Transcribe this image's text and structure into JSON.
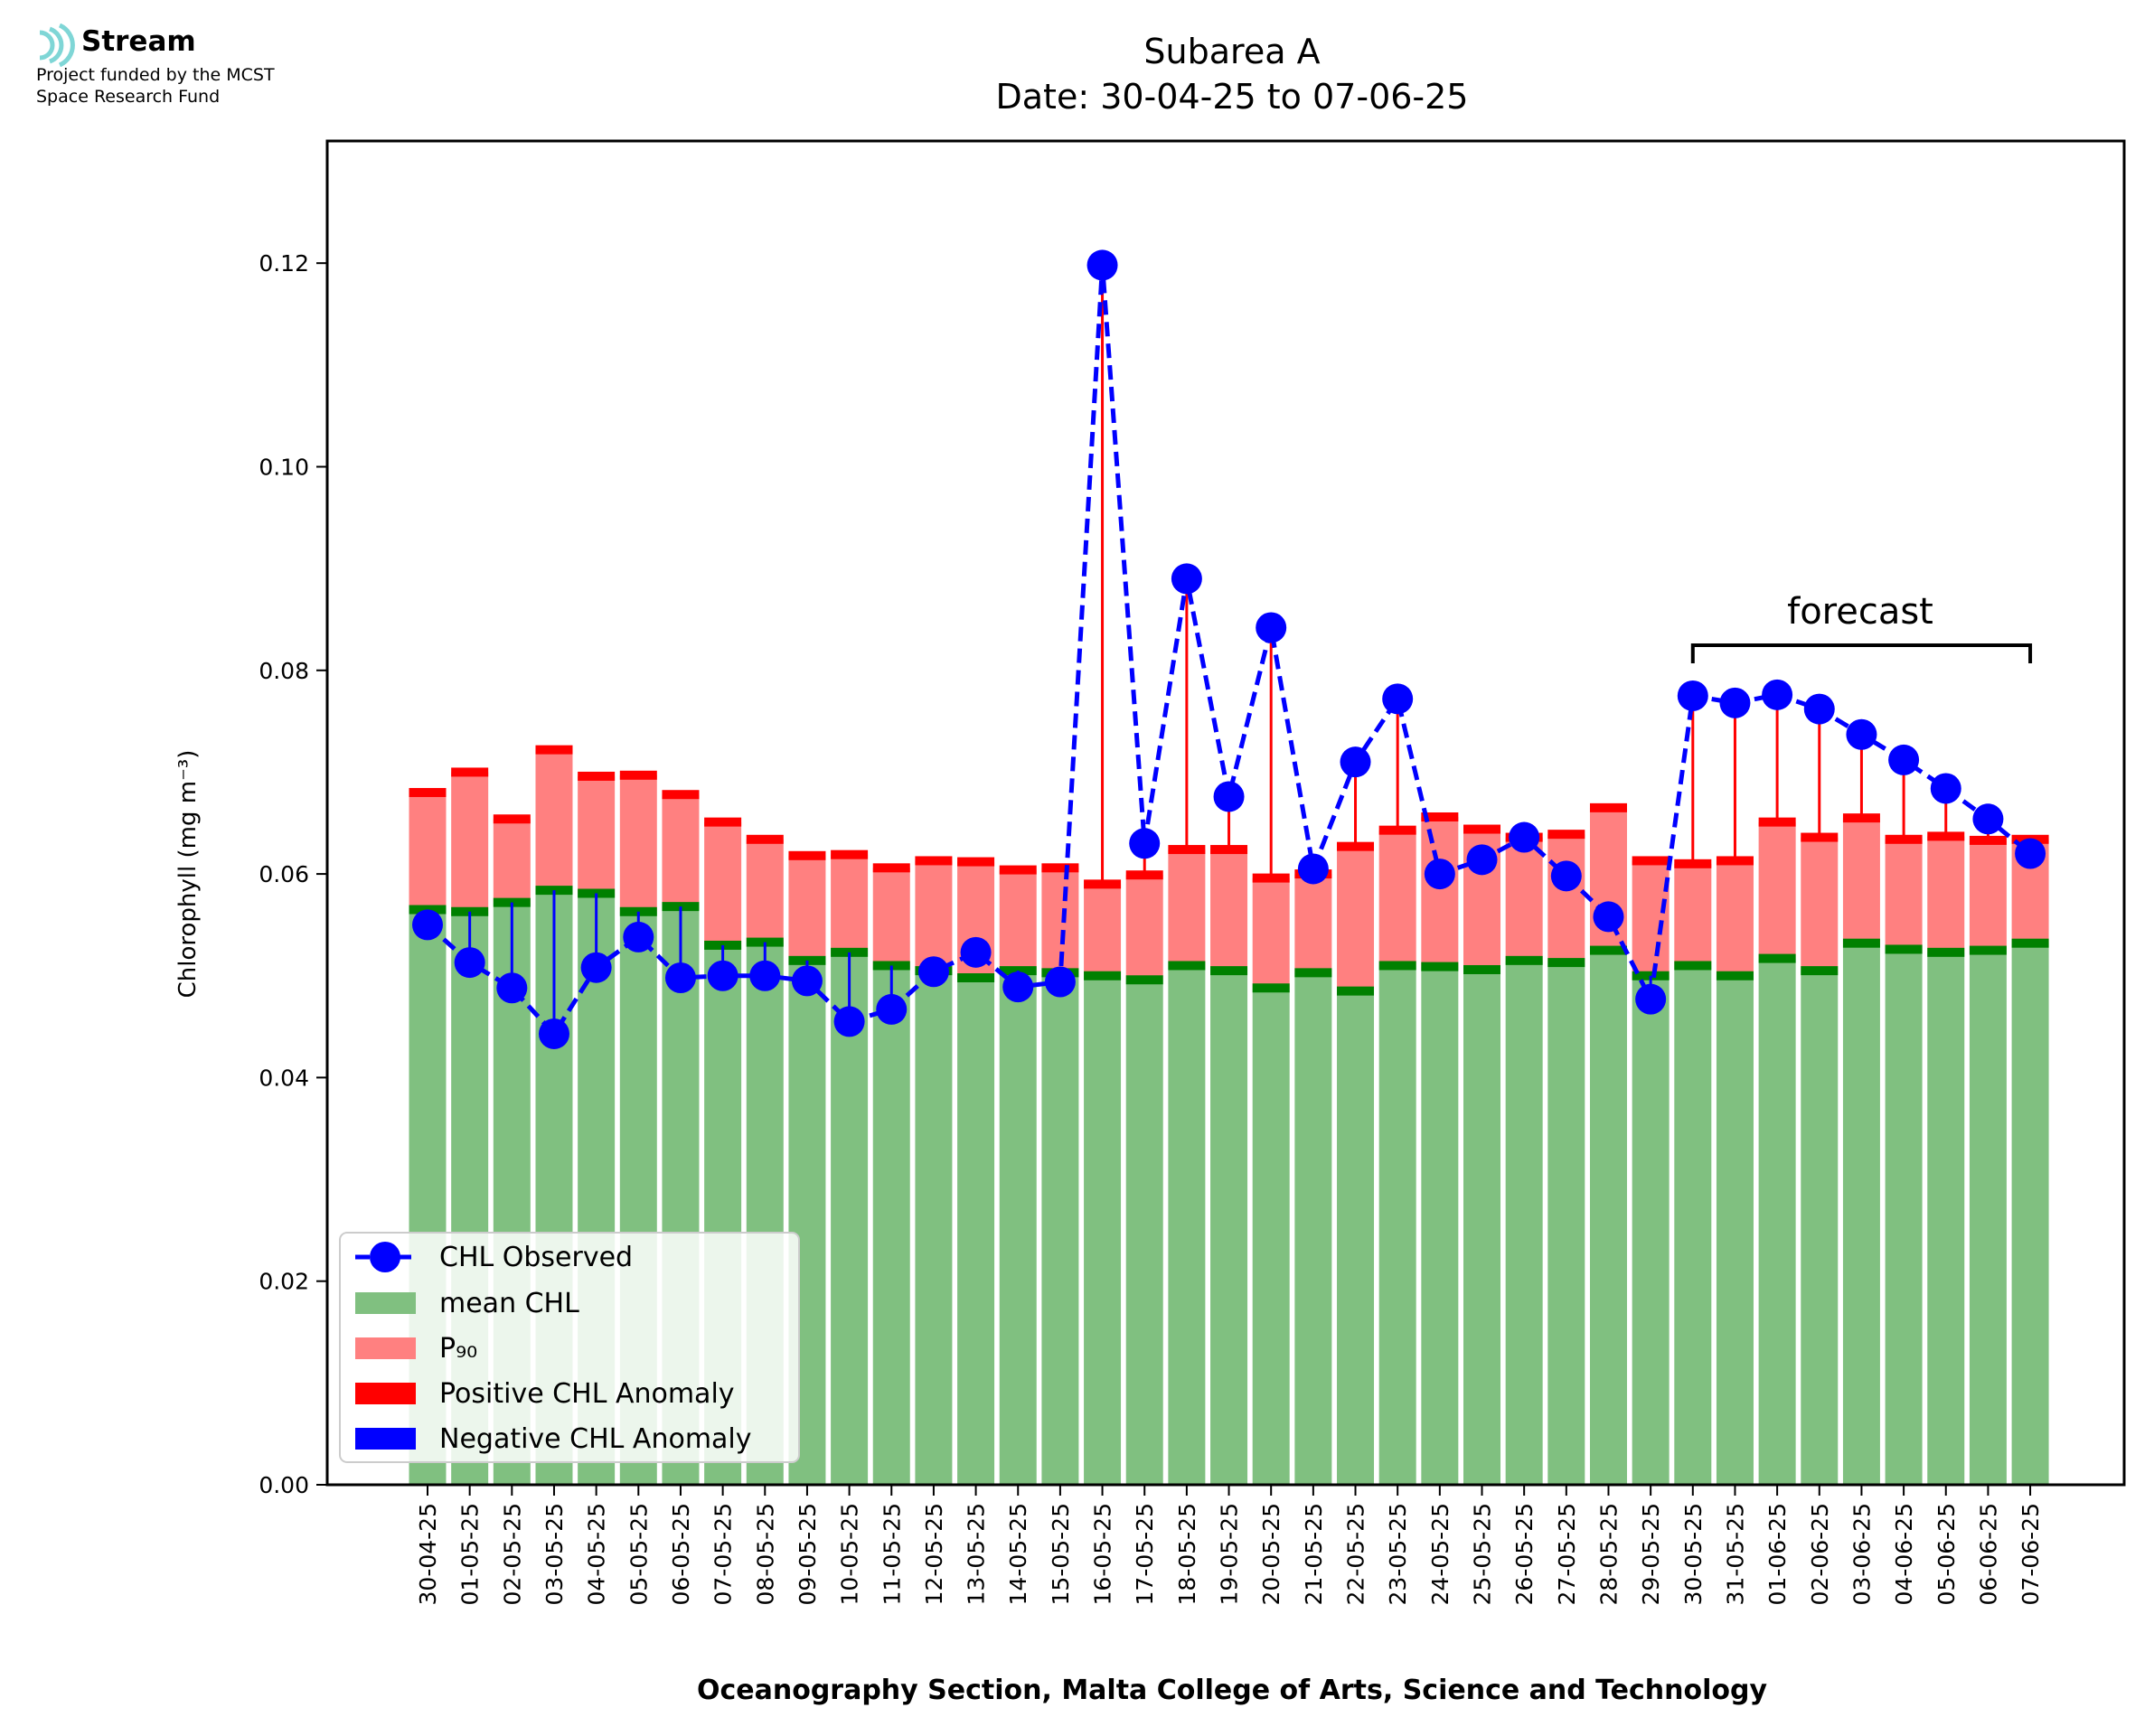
{
  "logo": {
    "name": "Stream",
    "line1": "Project funded by the MCST",
    "line2": "Space Research Fund"
  },
  "chart_data": {
    "type": "bar",
    "title": "Subarea A",
    "subtitle": "Date: 30-04-25 to 07-06-25",
    "xlabel": "Oceanography Section, Malta College of Arts, Science and Technology",
    "ylabel": "Chlorophyll (mg m⁻³)",
    "ylim": [
      0,
      0.132
    ],
    "yticks": [
      "0.00",
      "0.02",
      "0.04",
      "0.06",
      "0.08",
      "0.10",
      "0.12"
    ],
    "ytick_values": [
      0,
      0.02,
      0.04,
      0.06,
      0.08,
      0.1,
      0.12
    ],
    "grid": false,
    "legend_position": "bottom-left",
    "categories": [
      "30-04-25",
      "01-05-25",
      "02-05-25",
      "03-05-25",
      "04-05-25",
      "05-05-25",
      "06-05-25",
      "07-05-25",
      "08-05-25",
      "09-05-25",
      "10-05-25",
      "11-05-25",
      "12-05-25",
      "13-05-25",
      "14-05-25",
      "15-05-25",
      "16-05-25",
      "17-05-25",
      "18-05-25",
      "19-05-25",
      "20-05-25",
      "21-05-25",
      "22-05-25",
      "23-05-25",
      "24-05-25",
      "25-05-25",
      "26-05-25",
      "27-05-25",
      "28-05-25",
      "29-05-25",
      "30-05-25",
      "31-05-25",
      "01-06-25",
      "02-06-25",
      "03-06-25",
      "04-06-25",
      "05-06-25",
      "06-06-25",
      "07-06-25"
    ],
    "series": [
      {
        "name": "CHL Observed",
        "color": "#0000ff",
        "style": "dashed-line-circle-markers",
        "values": [
          0.055,
          0.0513,
          0.0488,
          0.0443,
          0.0508,
          0.0538,
          0.0498,
          0.05,
          0.05,
          0.0495,
          0.0455,
          0.0467,
          0.0504,
          0.0523,
          0.0489,
          0.0494,
          0.1198,
          0.063,
          0.089,
          0.0676,
          0.0842,
          0.0605,
          0.071,
          0.0772,
          0.06,
          0.0614,
          0.0636,
          0.0598,
          0.0558,
          0.0477,
          0.0775,
          0.0768,
          0.0776,
          0.0762,
          0.0737,
          0.0712,
          0.0684,
          0.0654,
          0.062
        ]
      },
      {
        "name": "mean CHL",
        "color": "#80c080",
        "values": [
          0.0565,
          0.0563,
          0.0572,
          0.0584,
          0.0581,
          0.0563,
          0.0568,
          0.053,
          0.0533,
          0.0515,
          0.0523,
          0.051,
          0.0505,
          0.0498,
          0.0505,
          0.0503,
          0.05,
          0.0496,
          0.051,
          0.0505,
          0.0488,
          0.0503,
          0.0485,
          0.051,
          0.0509,
          0.0506,
          0.0515,
          0.0513,
          0.0525,
          0.05,
          0.051,
          0.05,
          0.0517,
          0.0505,
          0.0532,
          0.0526,
          0.0523,
          0.0525,
          0.0532
        ]
      },
      {
        "name": "P₉₀",
        "color": "#ff8080",
        "values": [
          0.068,
          0.07,
          0.0654,
          0.0722,
          0.0696,
          0.0697,
          0.0678,
          0.0651,
          0.0634,
          0.0618,
          0.0619,
          0.0606,
          0.0613,
          0.0612,
          0.0604,
          0.0606,
          0.059,
          0.0599,
          0.0624,
          0.0624,
          0.0596,
          0.06,
          0.0627,
          0.0643,
          0.0656,
          0.0644,
          0.0636,
          0.0639,
          0.0665,
          0.0613,
          0.061,
          0.0613,
          0.0651,
          0.0636,
          0.0655,
          0.0634,
          0.0637,
          0.0633,
          0.0634
        ]
      },
      {
        "name": "Positive CHL Anomaly",
        "color": "#ff0000"
      },
      {
        "name": "Negative CHL Anomaly",
        "color": "#0000ff"
      }
    ],
    "annotation": {
      "text": "forecast",
      "from": "30-05-25",
      "to": "07-06-25"
    }
  }
}
